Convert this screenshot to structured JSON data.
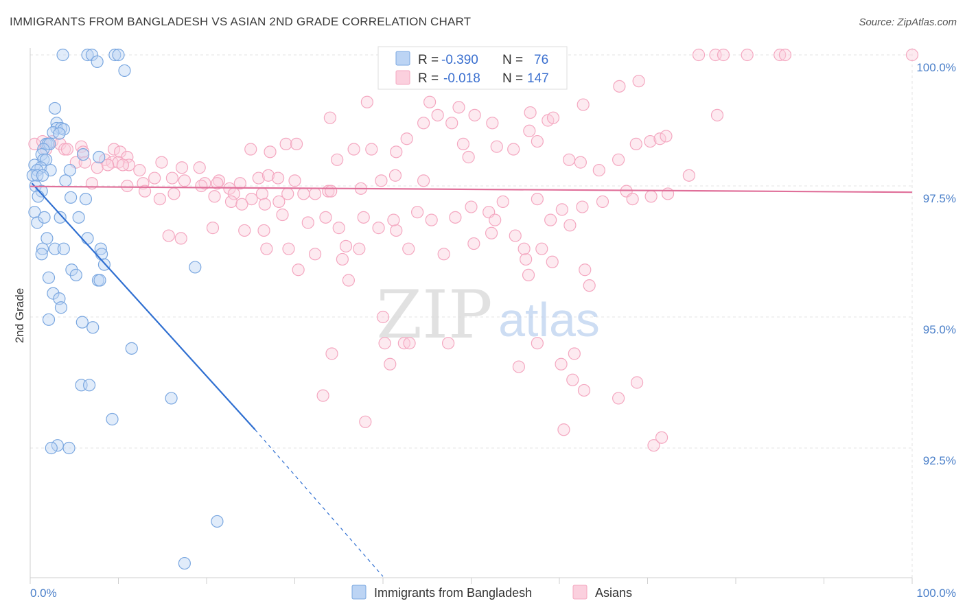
{
  "title": "IMMIGRANTS FROM BANGLADESH VS ASIAN 2ND GRADE CORRELATION CHART",
  "source": "Source: ZipAtlas.com",
  "watermark": {
    "zip": "ZIP",
    "atlas": "atlas"
  },
  "chart_data": {
    "type": "scatter",
    "ylabel": "2nd Grade",
    "xlim": [
      0,
      100
    ],
    "ylim": [
      90.0,
      100.4
    ],
    "x_tick_labels": [
      "0.0%",
      "100.0%"
    ],
    "y_ticks": [
      {
        "value": 100.0,
        "label": "100.0%"
      },
      {
        "value": 97.5,
        "label": "97.5%"
      },
      {
        "value": 95.0,
        "label": "95.0%"
      },
      {
        "value": 92.5,
        "label": "92.5%"
      }
    ],
    "legend": {
      "placement": "top-center",
      "rows": [
        {
          "r_label": "R =",
          "r_value": "-0.390",
          "n_label": "N =",
          "n_value": "76"
        },
        {
          "r_label": "R =",
          "r_value": "-0.018",
          "n_label": "N =",
          "n_value": "147"
        }
      ]
    },
    "series": [
      {
        "name": "Immigrants from Bangladesh",
        "color": "#7aa7e0",
        "line_color": "#2f6fd1",
        "trend": {
          "x1": 0.2,
          "y1": 97.55,
          "x2": 25.5,
          "y2": 92.85,
          "dash_to_x": 40.0,
          "dash_to_y": 90.05
        },
        "points": [
          [
            3.7,
            100.0
          ],
          [
            6.5,
            100.0
          ],
          [
            7.0,
            100.0
          ],
          [
            9.6,
            100.0
          ],
          [
            10.0,
            100.0
          ],
          [
            7.6,
            99.87
          ],
          [
            10.7,
            99.7
          ],
          [
            2.8,
            98.98
          ],
          [
            3.0,
            98.7
          ],
          [
            3.0,
            98.6
          ],
          [
            3.5,
            98.6
          ],
          [
            3.8,
            98.58
          ],
          [
            2.6,
            98.52
          ],
          [
            3.3,
            98.5
          ],
          [
            1.8,
            98.3
          ],
          [
            2.0,
            98.3
          ],
          [
            2.2,
            98.3
          ],
          [
            1.5,
            98.2
          ],
          [
            1.3,
            98.1
          ],
          [
            6.0,
            98.1
          ],
          [
            7.8,
            98.05
          ],
          [
            1.5,
            98.0
          ],
          [
            1.8,
            98.0
          ],
          [
            0.5,
            97.9
          ],
          [
            1.2,
            97.85
          ],
          [
            0.8,
            97.8
          ],
          [
            2.3,
            97.8
          ],
          [
            4.5,
            97.8
          ],
          [
            0.3,
            97.7
          ],
          [
            0.8,
            97.7
          ],
          [
            1.4,
            97.7
          ],
          [
            4.0,
            97.6
          ],
          [
            0.6,
            97.5
          ],
          [
            1.3,
            97.4
          ],
          [
            0.9,
            97.3
          ],
          [
            4.6,
            97.28
          ],
          [
            6.3,
            97.25
          ],
          [
            0.5,
            97.0
          ],
          [
            0.8,
            96.8
          ],
          [
            1.6,
            96.9
          ],
          [
            3.4,
            96.9
          ],
          [
            5.5,
            96.9
          ],
          [
            6.5,
            96.5
          ],
          [
            1.9,
            96.5
          ],
          [
            1.4,
            96.3
          ],
          [
            2.8,
            96.3
          ],
          [
            3.8,
            96.3
          ],
          [
            8.0,
            96.3
          ],
          [
            1.3,
            96.2
          ],
          [
            8.1,
            96.2
          ],
          [
            8.4,
            96.0
          ],
          [
            18.7,
            95.95
          ],
          [
            4.7,
            95.9
          ],
          [
            5.2,
            95.8
          ],
          [
            2.1,
            95.75
          ],
          [
            7.7,
            95.7
          ],
          [
            7.9,
            95.7
          ],
          [
            2.6,
            95.45
          ],
          [
            3.3,
            95.35
          ],
          [
            3.5,
            95.18
          ],
          [
            2.1,
            94.95
          ],
          [
            5.9,
            94.9
          ],
          [
            7.1,
            94.8
          ],
          [
            11.5,
            94.4
          ],
          [
            5.8,
            93.7
          ],
          [
            6.7,
            93.7
          ],
          [
            16.0,
            93.45
          ],
          [
            9.3,
            93.05
          ],
          [
            3.1,
            92.55
          ],
          [
            2.4,
            92.5
          ],
          [
            4.4,
            92.5
          ],
          [
            21.2,
            91.1
          ],
          [
            17.5,
            90.3
          ]
        ]
      },
      {
        "name": "Asians",
        "color": "#f4a7c0",
        "line_color": "#e0709a",
        "trend": {
          "x1": 0.0,
          "y1": 97.49,
          "x2": 100.0,
          "y2": 97.38
        },
        "points": [
          [
            0.5,
            98.3
          ],
          [
            1.4,
            98.35
          ],
          [
            2.5,
            98.35
          ],
          [
            3.4,
            98.3
          ],
          [
            5.8,
            98.25
          ],
          [
            1.8,
            98.2
          ],
          [
            3.9,
            98.2
          ],
          [
            4.2,
            98.2
          ],
          [
            6.0,
            98.15
          ],
          [
            9.5,
            98.2
          ],
          [
            10.2,
            98.15
          ],
          [
            11.0,
            98.05
          ],
          [
            8.5,
            98.0
          ],
          [
            9.3,
            97.95
          ],
          [
            10.0,
            97.95
          ],
          [
            11.2,
            97.9
          ],
          [
            5.2,
            97.95
          ],
          [
            6.2,
            97.95
          ],
          [
            7.6,
            97.85
          ],
          [
            8.8,
            97.9
          ],
          [
            12.4,
            97.8
          ],
          [
            14.9,
            97.95
          ],
          [
            17.2,
            97.85
          ],
          [
            19.2,
            97.85
          ],
          [
            16.1,
            97.65
          ],
          [
            14.1,
            97.65
          ],
          [
            12.8,
            97.55
          ],
          [
            17.5,
            97.6
          ],
          [
            19.8,
            97.55
          ],
          [
            22.6,
            97.45
          ],
          [
            23.8,
            97.55
          ],
          [
            25.9,
            97.65
          ],
          [
            27.0,
            97.7
          ],
          [
            28.1,
            97.65
          ],
          [
            30.0,
            97.6
          ],
          [
            20.9,
            97.3
          ],
          [
            23.1,
            97.35
          ],
          [
            25.1,
            97.25
          ],
          [
            26.3,
            97.35
          ],
          [
            28.2,
            97.2
          ],
          [
            29.2,
            97.35
          ],
          [
            31.0,
            97.35
          ],
          [
            32.3,
            97.35
          ],
          [
            33.8,
            97.4
          ],
          [
            34.1,
            97.4
          ],
          [
            37.5,
            97.45
          ],
          [
            39.8,
            97.6
          ],
          [
            41.4,
            97.7
          ],
          [
            44.6,
            97.6
          ],
          [
            11.0,
            97.5
          ],
          [
            13.0,
            97.4
          ],
          [
            16.3,
            97.35
          ],
          [
            19.4,
            97.5
          ],
          [
            21.4,
            97.6
          ],
          [
            21.2,
            97.55
          ],
          [
            7.0,
            97.55
          ],
          [
            10.5,
            97.9
          ],
          [
            14.7,
            97.25
          ],
          [
            22.8,
            97.2
          ],
          [
            24.0,
            97.15
          ],
          [
            26.6,
            97.15
          ],
          [
            28.6,
            96.95
          ],
          [
            31.5,
            96.8
          ],
          [
            33.5,
            96.9
          ],
          [
            35.0,
            96.7
          ],
          [
            37.8,
            96.9
          ],
          [
            41.5,
            96.65
          ],
          [
            43.9,
            97.0
          ],
          [
            45.5,
            96.85
          ],
          [
            48.2,
            96.9
          ],
          [
            50.0,
            97.1
          ],
          [
            52.0,
            97.0
          ],
          [
            52.7,
            96.85
          ],
          [
            53.6,
            97.2
          ],
          [
            57.5,
            97.25
          ],
          [
            60.3,
            97.05
          ],
          [
            62.6,
            97.1
          ],
          [
            64.9,
            97.2
          ],
          [
            67.6,
            97.4
          ],
          [
            68.3,
            97.25
          ],
          [
            70.4,
            97.3
          ],
          [
            72.3,
            97.35
          ],
          [
            20.7,
            96.7
          ],
          [
            24.3,
            96.65
          ],
          [
            15.7,
            96.55
          ],
          [
            17.1,
            96.5
          ],
          [
            26.5,
            96.65
          ],
          [
            26.8,
            96.3
          ],
          [
            29.3,
            96.3
          ],
          [
            32.3,
            96.2
          ],
          [
            35.8,
            96.35
          ],
          [
            37.3,
            96.3
          ],
          [
            39.5,
            96.7
          ],
          [
            41.2,
            96.85
          ],
          [
            42.9,
            96.3
          ],
          [
            46.9,
            96.2
          ],
          [
            50.3,
            96.4
          ],
          [
            52.3,
            96.6
          ],
          [
            55.0,
            96.55
          ],
          [
            56.2,
            96.1
          ],
          [
            58.0,
            96.3
          ],
          [
            30.4,
            95.9
          ],
          [
            35.4,
            96.1
          ],
          [
            56.0,
            96.3
          ],
          [
            56.5,
            95.8
          ],
          [
            59.0,
            96.85
          ],
          [
            59.2,
            96.05
          ],
          [
            61.2,
            96.75
          ],
          [
            62.9,
            95.9
          ],
          [
            63.4,
            95.6
          ],
          [
            36.1,
            95.7
          ],
          [
            40.0,
            95.0
          ],
          [
            34.2,
            94.3
          ],
          [
            40.8,
            94.1
          ],
          [
            42.4,
            94.5
          ],
          [
            40.2,
            94.5
          ],
          [
            43.0,
            94.5
          ],
          [
            47.4,
            94.5
          ],
          [
            57.5,
            94.5
          ],
          [
            61.7,
            94.3
          ],
          [
            55.4,
            94.05
          ],
          [
            60.2,
            94.1
          ],
          [
            61.5,
            93.8
          ],
          [
            62.8,
            93.6
          ],
          [
            66.7,
            93.45
          ],
          [
            68.8,
            93.75
          ],
          [
            70.7,
            92.55
          ],
          [
            71.6,
            92.7
          ],
          [
            33.2,
            93.5
          ],
          [
            38.0,
            93.0
          ],
          [
            60.5,
            92.85
          ],
          [
            25.0,
            98.2
          ],
          [
            27.2,
            98.15
          ],
          [
            29.0,
            98.3
          ],
          [
            30.2,
            98.3
          ],
          [
            34.8,
            98.0
          ],
          [
            36.7,
            98.2
          ],
          [
            38.7,
            98.2
          ],
          [
            41.5,
            98.15
          ],
          [
            42.7,
            98.4
          ],
          [
            44.6,
            98.7
          ],
          [
            46.2,
            98.85
          ],
          [
            47.8,
            98.7
          ],
          [
            49.1,
            98.3
          ],
          [
            49.7,
            98.05
          ],
          [
            50.4,
            98.85
          ],
          [
            52.9,
            98.25
          ],
          [
            54.8,
            98.2
          ],
          [
            56.6,
            98.55
          ],
          [
            57.5,
            98.35
          ],
          [
            58.7,
            98.75
          ],
          [
            61.1,
            98.0
          ],
          [
            62.4,
            97.95
          ],
          [
            64.5,
            97.8
          ],
          [
            66.7,
            98.0
          ],
          [
            68.7,
            98.3
          ],
          [
            34.0,
            98.8
          ],
          [
            38.2,
            99.1
          ],
          [
            45.3,
            99.1
          ],
          [
            48.6,
            99.0
          ],
          [
            52.4,
            98.7
          ],
          [
            56.7,
            98.9
          ],
          [
            59.3,
            98.8
          ],
          [
            62.7,
            99.05
          ],
          [
            66.8,
            99.4
          ],
          [
            69.0,
            99.5
          ],
          [
            70.3,
            98.35
          ],
          [
            71.4,
            98.4
          ],
          [
            72.1,
            98.45
          ],
          [
            74.7,
            97.7
          ],
          [
            77.9,
            98.85
          ],
          [
            75.8,
            100.0
          ],
          [
            77.7,
            100.0
          ],
          [
            78.6,
            100.0
          ],
          [
            81.3,
            100.0
          ],
          [
            85.0,
            100.0
          ],
          [
            85.6,
            100.0
          ],
          [
            100.0,
            100.0
          ]
        ]
      }
    ]
  }
}
